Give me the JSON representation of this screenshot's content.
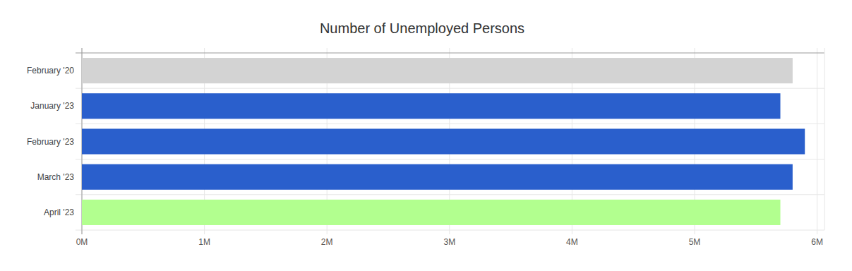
{
  "chart_data": {
    "type": "bar",
    "orientation": "horizontal",
    "title": "Number of Unemployed Persons",
    "categories": [
      "February '20",
      "January '23",
      "February '23",
      "March '23",
      "April '23"
    ],
    "values": [
      5.8,
      5.7,
      5.9,
      5.8,
      5.7
    ],
    "colors": [
      "#d3d3d3",
      "#2a5fcc",
      "#2a5fcc",
      "#2a5fcc",
      "#b2ff8f"
    ],
    "xlim": [
      0,
      6.06
    ],
    "xticks": [
      {
        "value": 0,
        "label": "0M"
      },
      {
        "value": 1,
        "label": "1M"
      },
      {
        "value": 2,
        "label": "2M"
      },
      {
        "value": 3,
        "label": "3M"
      },
      {
        "value": 4,
        "label": "4M"
      },
      {
        "value": 5,
        "label": "5M"
      },
      {
        "value": 6,
        "label": "6M"
      }
    ],
    "grid": true
  }
}
